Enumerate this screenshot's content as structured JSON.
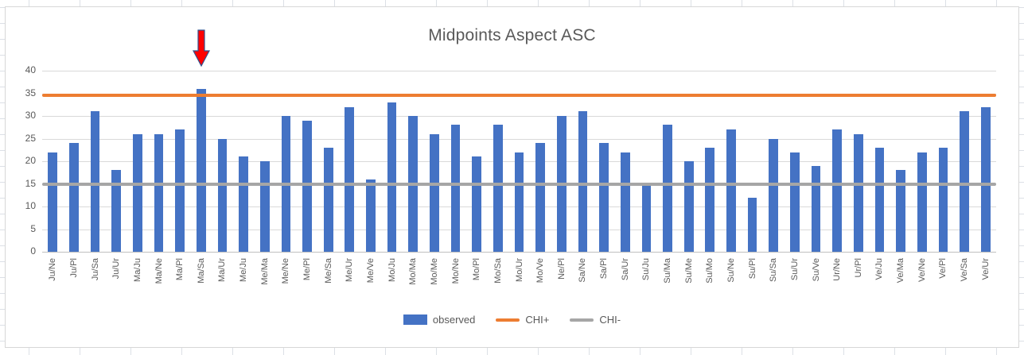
{
  "chart_data": {
    "type": "bar",
    "title": "Midpoints Aspect ASC",
    "categories": [
      "Ju/Ne",
      "Ju/Pl",
      "Ju/Sa",
      "Ju/Ur",
      "Ma/Ju",
      "Ma/Ne",
      "Ma/Pl",
      "Ma/Sa",
      "Ma/Ur",
      "Me/Ju",
      "Me/Ma",
      "Me/Ne",
      "Me/Pl",
      "Me/Sa",
      "Me/Ur",
      "Me/Ve",
      "Mo/Ju",
      "Mo/Ma",
      "Mo/Me",
      "Mo/Ne",
      "Mo/Pl",
      "Mo/Sa",
      "Mo/Ur",
      "Mo/Ve",
      "Ne/Pl",
      "Sa/Ne",
      "Sa/Pl",
      "Sa/Ur",
      "Su/Ju",
      "Su/Ma",
      "Su/Me",
      "Su/Mo",
      "Su/Ne",
      "Su/Pl",
      "Su/Sa",
      "Su/Ur",
      "Su/Ve",
      "Ur/Ne",
      "Ur/Pl",
      "Ve/Ju",
      "Ve/Ma",
      "Ve/Ne",
      "Ve/Pl",
      "Ve/Sa",
      "Ve/Ur"
    ],
    "series": [
      {
        "name": "observed",
        "type": "bar",
        "color": "#4472C4",
        "values": [
          22,
          24,
          31,
          18,
          26,
          26,
          27,
          36,
          25,
          21,
          20,
          30,
          29,
          23,
          32,
          16,
          33,
          30,
          26,
          28,
          21,
          28,
          22,
          24,
          30,
          31,
          24,
          22,
          15,
          28,
          20,
          23,
          27,
          12,
          25,
          22,
          19,
          27,
          26,
          23,
          18,
          22,
          23,
          31,
          32
        ]
      },
      {
        "name": "CHI+",
        "type": "line",
        "color": "#ED7D31",
        "value": 34.5
      },
      {
        "name": "CHI-",
        "type": "line",
        "color": "#A6A6A6",
        "value": 15
      }
    ],
    "ylim": [
      0,
      40
    ],
    "yticks": [
      0,
      5,
      10,
      15,
      20,
      25,
      30,
      35,
      40
    ],
    "grid": true,
    "legend_position": "bottom",
    "annotation": {
      "type": "down-arrow",
      "category": "Ma/Sa",
      "fill": "#FF0000",
      "stroke": "#2F528F"
    }
  }
}
